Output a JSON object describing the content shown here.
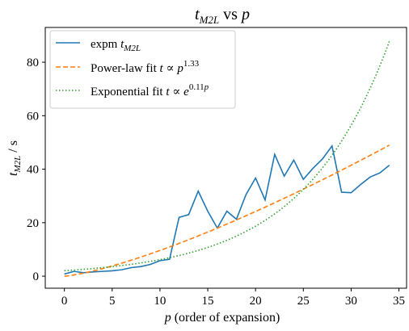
{
  "chart_data": {
    "type": "line",
    "title": "t_{M2L} vs p",
    "xlabel": "p (order of expansion)",
    "ylabel": "t_{M2L} / s",
    "xlim": [
      -2.0,
      35.8
    ],
    "ylim": [
      -4.5,
      93.0
    ],
    "xticks": [
      0,
      5,
      10,
      15,
      20,
      25,
      30,
      35
    ],
    "yticks": [
      0,
      20,
      40,
      60,
      80
    ],
    "grid": false,
    "legend_position": "top-left",
    "series": [
      {
        "name": "expm t_{M2L}",
        "style": "solid",
        "color": "#1f77b4",
        "x": [
          0,
          1,
          2,
          3,
          4,
          5,
          6,
          7,
          8,
          9,
          10,
          11,
          12,
          13,
          14,
          15,
          16,
          17,
          18,
          19,
          20,
          21,
          22,
          23,
          24,
          25,
          26,
          27,
          28,
          29,
          30,
          31,
          32,
          33,
          34
        ],
        "y": [
          0.8,
          1.8,
          1.3,
          1.6,
          1.8,
          2.0,
          2.4,
          3.2,
          3.6,
          4.4,
          5.8,
          6.3,
          22.0,
          23.0,
          31.8,
          24.3,
          18.0,
          24.3,
          21.3,
          30.5,
          36.7,
          28.5,
          45.5,
          37.4,
          43.4,
          36.2,
          40.3,
          43.8,
          48.7,
          31.4,
          31.2,
          34.3,
          37.1,
          38.6,
          41.5
        ]
      },
      {
        "name": "Power-law fit  t ∝ p^{1.33}",
        "style": "dashed",
        "color": "#ff7f0e",
        "model": "power",
        "params": {
          "a": 0.45,
          "b": 1.33
        }
      },
      {
        "name": "Exponential fit  t ∝ e^{0.11p}",
        "style": "dotted",
        "color": "#2ca02c",
        "model": "exponential",
        "params": {
          "a": 2.05,
          "k": 0.1105
        }
      }
    ]
  },
  "text": {
    "title_t": "t",
    "title_sub": "M2L",
    "title_vs": " vs ",
    "title_p": "p",
    "xlabel_p": "p",
    "xlabel_rest": " (order of expansion)",
    "ylabel_t": "t",
    "ylabel_sub": "M2L",
    "ylabel_rest": " / s",
    "legend_expm": "expm ",
    "legend_expm_t": "t",
    "legend_expm_sub": "M2L",
    "legend_pow": "Power-law fit ",
    "legend_pow_t": "t",
    "legend_pow_prop": " ∝ ",
    "legend_pow_p": "p",
    "legend_pow_exp": "1.33",
    "legend_exp": "Exponential fit ",
    "legend_exp_t": "t",
    "legend_exp_prop": " ∝ ",
    "legend_exp_e": "e",
    "legend_exp_exp": "0.11",
    "legend_exp_exp_p": "p"
  }
}
